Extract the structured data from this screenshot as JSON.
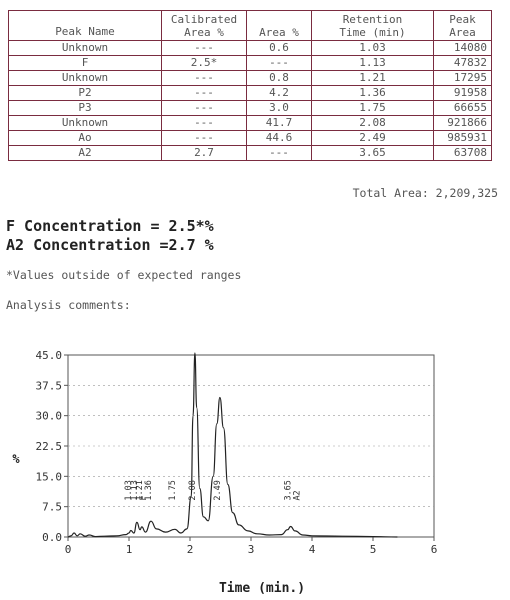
{
  "table": {
    "headers": {
      "name": "Peak Name",
      "cal_line1": "Calibrated",
      "cal_line2": "Area %",
      "area": "Area %",
      "ret_line1": "Retention",
      "ret_line2": "Time (min)",
      "peak_line1": "Peak",
      "peak_line2": "Area"
    },
    "rows": [
      {
        "name": "Unknown",
        "cal": "---",
        "area_pct": "0.6",
        "rt": "1.03",
        "area": "14080"
      },
      {
        "name": "F",
        "cal": "2.5*",
        "area_pct": "---",
        "rt": "1.13",
        "area": "47832"
      },
      {
        "name": "Unknown",
        "cal": "---",
        "area_pct": "0.8",
        "rt": "1.21",
        "area": "17295"
      },
      {
        "name": "P2",
        "cal": "---",
        "area_pct": "4.2",
        "rt": "1.36",
        "area": "91958"
      },
      {
        "name": "P3",
        "cal": "---",
        "area_pct": "3.0",
        "rt": "1.75",
        "area": "66655"
      },
      {
        "name": "Unknown",
        "cal": "---",
        "area_pct": "41.7",
        "rt": "2.08",
        "area": "921866"
      },
      {
        "name": "Ao",
        "cal": "---",
        "area_pct": "44.6",
        "rt": "2.49",
        "area": "985931"
      },
      {
        "name": "A2",
        "cal": "2.7",
        "area_pct": "---",
        "rt": "3.65",
        "area": "63708"
      }
    ]
  },
  "total_area": "Total Area:  2,209,325",
  "concentrations": {
    "f": "F Concentration =  2.5*%",
    "a2": "A2 Concentration =2.7 %"
  },
  "note": "*Values outside of expected ranges",
  "comments_label": "Analysis comments:",
  "chart_data": {
    "type": "line",
    "title": "",
    "xlabel": "Time (min.)",
    "ylabel": "%",
    "xlim": [
      0,
      6
    ],
    "ylim": [
      0,
      45
    ],
    "xticks": [
      "0",
      "1",
      "2",
      "3",
      "4",
      "5",
      "6"
    ],
    "yticks": [
      "0.0",
      "7.5",
      "15.0",
      "22.5",
      "30.0",
      "37.5",
      "45.0"
    ],
    "peak_labels": [
      {
        "t": 1.03,
        "label": "1.03"
      },
      {
        "t": 1.13,
        "label": "1.13"
      },
      {
        "t": 1.13,
        "label": "F"
      },
      {
        "t": 1.21,
        "label": "1.21"
      },
      {
        "t": 1.36,
        "label": "1.36"
      },
      {
        "t": 1.75,
        "label": "1.75"
      },
      {
        "t": 2.08,
        "label": "2.08"
      },
      {
        "t": 2.49,
        "label": "2.49"
      },
      {
        "t": 3.65,
        "label": "3.65"
      },
      {
        "t": 3.65,
        "label": "A2"
      }
    ],
    "series": [
      {
        "values": [
          [
            0,
            0
          ],
          [
            0.05,
            0.3
          ],
          [
            0.1,
            1.0
          ],
          [
            0.15,
            0.3
          ],
          [
            0.2,
            0.8
          ],
          [
            0.28,
            0.2
          ],
          [
            0.35,
            0.5
          ],
          [
            0.45,
            0.1
          ],
          [
            0.6,
            0.2
          ],
          [
            0.8,
            0.3
          ],
          [
            0.95,
            0.6
          ],
          [
            1.0,
            1.0
          ],
          [
            1.03,
            1.6
          ],
          [
            1.08,
            1.0
          ],
          [
            1.13,
            3.6
          ],
          [
            1.18,
            1.8
          ],
          [
            1.21,
            2.5
          ],
          [
            1.27,
            1.2
          ],
          [
            1.36,
            3.9
          ],
          [
            1.45,
            2.0
          ],
          [
            1.6,
            1.2
          ],
          [
            1.75,
            1.9
          ],
          [
            1.85,
            1.0
          ],
          [
            1.95,
            2.0
          ],
          [
            2.02,
            10
          ],
          [
            2.05,
            30
          ],
          [
            2.08,
            45.5
          ],
          [
            2.11,
            32
          ],
          [
            2.16,
            12
          ],
          [
            2.22,
            5
          ],
          [
            2.3,
            4
          ],
          [
            2.38,
            15
          ],
          [
            2.44,
            28
          ],
          [
            2.49,
            34.5
          ],
          [
            2.55,
            27
          ],
          [
            2.62,
            13
          ],
          [
            2.7,
            6
          ],
          [
            2.8,
            3
          ],
          [
            2.95,
            1.5
          ],
          [
            3.1,
            0.8
          ],
          [
            3.3,
            0.5
          ],
          [
            3.5,
            0.6
          ],
          [
            3.6,
            1.8
          ],
          [
            3.65,
            2.6
          ],
          [
            3.72,
            1.5
          ],
          [
            3.85,
            0.5
          ],
          [
            4.0,
            0.3
          ],
          [
            4.5,
            0.2
          ],
          [
            5.0,
            0.1
          ],
          [
            5.4,
            0
          ]
        ]
      }
    ]
  }
}
